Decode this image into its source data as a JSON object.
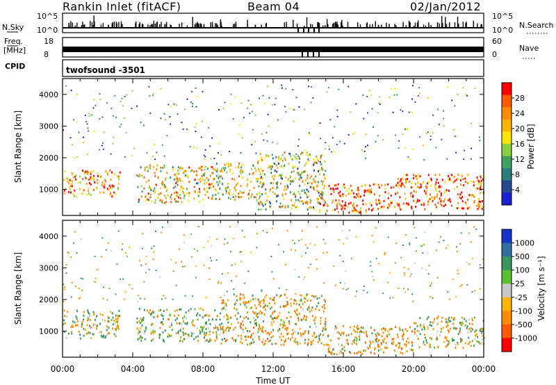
{
  "header": {
    "station": "Rankin Inlet (fitACF)",
    "beam": "Beam 04",
    "date": "02/Jan/2012"
  },
  "sky_panel": {
    "left_label": "N.Sky",
    "right_label": "N.Search",
    "left_ticks": [
      "10^5",
      "10^0"
    ],
    "right_ticks": [
      "10^5",
      "10^0"
    ]
  },
  "freq_panel": {
    "left_label_1": "Freq.",
    "left_label_2": "[MHz]",
    "right_label": "Nave",
    "left_ticks": [
      "18",
      "8"
    ],
    "right_ticks": [
      "60",
      "0"
    ]
  },
  "cpid_panel": {
    "label": "CPID",
    "program": "twofsound  -3501"
  },
  "power_panel": {
    "ylabel": "Slant Range [km]",
    "colorbar_label": "Power [dB]",
    "colorbar_ticks": [
      "28",
      "24",
      "20",
      "16",
      "12",
      "8",
      "4"
    ],
    "colorbar_colors": [
      "#ff0000",
      "#ff5a00",
      "#ff8c00",
      "#ffb400",
      "#ffe600",
      "#88d040",
      "#3fa060",
      "#2e7d7d",
      "#284890",
      "#1a20d0"
    ]
  },
  "velocity_panel": {
    "ylabel": "Slant Range [km]",
    "colorbar_label": "Velocity [m s⁻¹]",
    "colorbar_ticks": [
      "1000",
      "500",
      "100",
      "25",
      "-25",
      "-100",
      "-500",
      "-1000"
    ],
    "colorbar_colors": [
      "#1535c8",
      "#2f6fa0",
      "#3a9560",
      "#5ac030",
      "#c8c8c8",
      "#ffb400",
      "#ff8c00",
      "#ff5a00",
      "#ff0000"
    ]
  },
  "chart_data": {
    "type": "heatmap",
    "title": "Rankin Inlet (fitACF)",
    "xlabel": "Time UT",
    "x_ticks": [
      "00:00",
      "04:00",
      "08:00",
      "12:00",
      "16:00",
      "20:00",
      "00:00"
    ],
    "x_range_hours": [
      0,
      24
    ],
    "ylim": [
      180,
      4500
    ],
    "y_ticks": [
      1000,
      2000,
      3000,
      4000
    ],
    "panels": [
      {
        "name": "Power",
        "units": "dB",
        "color_range": [
          0,
          30
        ],
        "scatter_regions": [
          {
            "t": [
              0.0,
              3.3
            ],
            "range_km": [
              800,
              1650
            ],
            "mean": 22
          },
          {
            "t": [
              4.2,
              8.5
            ],
            "range_km": [
              600,
              1800
            ],
            "mean": 18
          },
          {
            "t": [
              8.5,
              11.0
            ],
            "range_km": [
              700,
              1850
            ],
            "mean": 17
          },
          {
            "t": [
              11.0,
              15.0
            ],
            "range_km": [
              400,
              2200
            ],
            "mean": 15
          },
          {
            "t": [
              14.5,
              19.0
            ],
            "range_km": [
              300,
              1200
            ],
            "mean": 26
          },
          {
            "t": [
              19.0,
              24.0
            ],
            "range_km": [
              400,
              1500
            ],
            "mean": 26
          }
        ]
      },
      {
        "name": "Velocity",
        "units": "m s⁻¹",
        "color_range": [
          -1000,
          1000
        ],
        "scatter_regions": [
          {
            "t": [
              0.0,
              3.3
            ],
            "range_km": [
              800,
              1700
            ],
            "mean": 60
          },
          {
            "t": [
              4.2,
              9.0
            ],
            "range_km": [
              700,
              1750
            ],
            "mean": 80
          },
          {
            "t": [
              9.0,
              15.0
            ],
            "range_km": [
              600,
              2200
            ],
            "mean": -150
          },
          {
            "t": [
              15.0,
              20.0
            ],
            "range_km": [
              300,
              1200
            ],
            "mean": -200
          },
          {
            "t": [
              20.0,
              24.0
            ],
            "range_km": [
              500,
              1500
            ],
            "mean": 40
          }
        ]
      }
    ]
  }
}
